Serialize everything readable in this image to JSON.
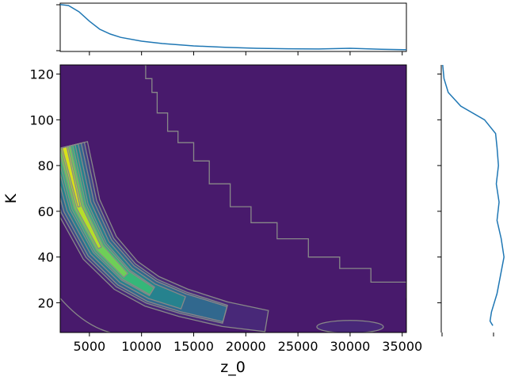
{
  "chart_data": {
    "type": "joint-density-contour",
    "xlabel": "z_0",
    "ylabel": "K",
    "xlim": [
      2200,
      35400
    ],
    "ylim": [
      7,
      124
    ],
    "x_ticks": [
      5000,
      10000,
      15000,
      20000,
      25000,
      30000,
      35000
    ],
    "x_tick_labels": [
      "5000",
      "10000",
      "15000",
      "20000",
      "25000",
      "30000",
      "35000"
    ],
    "y_ticks": [
      20,
      40,
      60,
      80,
      100,
      120
    ],
    "y_tick_labels": [
      "20",
      "40",
      "60",
      "80",
      "100",
      "120"
    ],
    "grid": false,
    "colors": {
      "background_fill": "#481a6c",
      "contour_line": "#888888",
      "marginal_line": "#1f77b4",
      "levels": [
        "#482878",
        "#3e4989",
        "#31688e",
        "#26828e",
        "#1f9e89",
        "#35b779",
        "#6ece58",
        "#b5de2b",
        "#d8e219"
      ]
    },
    "joint_ridge": {
      "description_points_x": [
        2600,
        4000,
        6000,
        8500,
        11000,
        14000,
        18000,
        22000
      ],
      "description_points_y": [
        88,
        62,
        44,
        32,
        25,
        20,
        15,
        12
      ]
    },
    "secondary_blob": {
      "x": 30000,
      "y": 9.5
    },
    "outer_contour": [
      [
        10200,
        124
      ],
      [
        10400,
        118
      ],
      [
        11000,
        112
      ],
      [
        11500,
        103
      ],
      [
        12500,
        95
      ],
      [
        13500,
        90
      ],
      [
        15000,
        82
      ],
      [
        16500,
        72
      ],
      [
        18500,
        62
      ],
      [
        20500,
        55
      ],
      [
        23000,
        48
      ],
      [
        26000,
        40
      ],
      [
        29000,
        35
      ],
      [
        32000,
        29
      ],
      [
        35400,
        22
      ]
    ],
    "top_marginal": {
      "x": [
        2200,
        3000,
        4000,
        5000,
        6000,
        7000,
        8000,
        10000,
        12000,
        15000,
        18000,
        21000,
        24000,
        27000,
        30000,
        33000,
        35400
      ],
      "density": [
        0.97,
        0.95,
        0.82,
        0.62,
        0.45,
        0.35,
        0.28,
        0.2,
        0.15,
        0.1,
        0.07,
        0.05,
        0.04,
        0.035,
        0.05,
        0.03,
        0.02
      ]
    },
    "right_marginal": {
      "y": [
        124,
        118,
        112,
        106,
        100,
        94,
        88,
        80,
        72,
        64,
        56,
        48,
        40,
        32,
        24,
        16,
        12,
        10
      ],
      "density": [
        0.02,
        0.04,
        0.1,
        0.28,
        0.62,
        0.78,
        0.8,
        0.82,
        0.79,
        0.83,
        0.8,
        0.86,
        0.9,
        0.85,
        0.8,
        0.72,
        0.7,
        0.74
      ]
    }
  }
}
